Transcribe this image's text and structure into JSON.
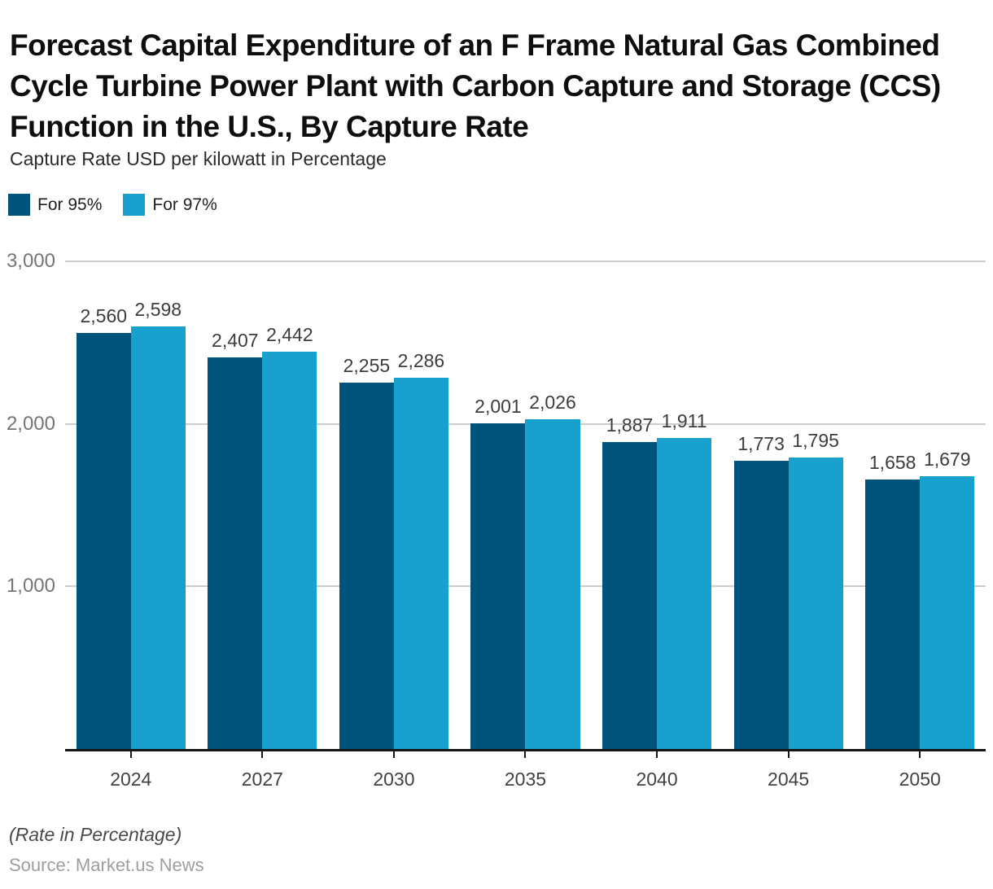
{
  "header": {
    "title": "Forecast Capital Expenditure of an F Frame Natural Gas Combined Cycle Turbine Power Plant with Carbon Capture and Storage (CCS) Function in the U.S., By Capture Rate",
    "subtitle": "Capture Rate USD per kilowatt in Percentage"
  },
  "legend": {
    "items": [
      {
        "label": "For 95%",
        "color": "#00537a"
      },
      {
        "label": "For 97%",
        "color": "#18a1ce"
      }
    ]
  },
  "chart_data": {
    "type": "bar",
    "title": "Forecast Capital Expenditure of an F Frame Natural Gas Combined Cycle Turbine Power Plant with Carbon Capture and Storage (CCS) Function in the U.S., By Capture Rate",
    "subtitle": "Capture Rate USD per kilowatt in Percentage",
    "categories": [
      "2024",
      "2027",
      "2030",
      "2035",
      "2040",
      "2045",
      "2050"
    ],
    "series": [
      {
        "name": "For 95%",
        "color": "#00537a",
        "values": [
          2560,
          2407,
          2255,
          2001,
          1887,
          1773,
          1658
        ]
      },
      {
        "name": "For 97%",
        "color": "#18a1ce",
        "values": [
          2598,
          2442,
          2286,
          2026,
          1911,
          1795,
          1679
        ]
      }
    ],
    "xlabel": "",
    "ylabel": "",
    "ylim": [
      0,
      3000
    ],
    "yticks": [
      {
        "value": 1000,
        "label": "1,000"
      },
      {
        "value": 2000,
        "label": "2,000"
      },
      {
        "value": 3000,
        "label": "3,000"
      }
    ],
    "grid": true,
    "legend_position": "top-left",
    "value_labels_shown": true
  },
  "footer": {
    "note": "(Rate in Percentage)",
    "source": "Source: Market.us News"
  },
  "colors": {
    "series_95": "#00537a",
    "series_97": "#18a1ce",
    "axis_line": "#161616",
    "gridline": "#cdcdcd",
    "y_tick_text": "#757575",
    "x_tick_text": "#424242",
    "value_label_text": "#3d3d3d"
  }
}
